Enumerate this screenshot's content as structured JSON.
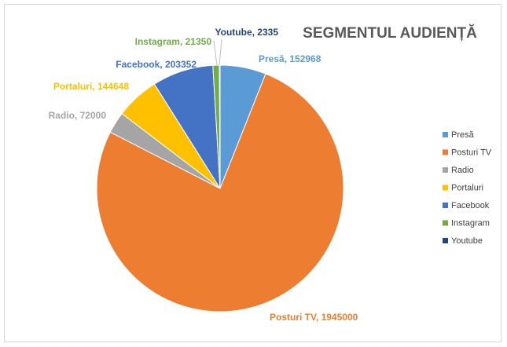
{
  "chart_data": {
    "type": "pie",
    "title": "SEGMENTUL AUDIENȚĂ",
    "categories": [
      "Presă",
      "Posturi TV",
      "Radio",
      "Portaluri",
      "Facebook",
      "Instagram",
      "Youtube"
    ],
    "values": [
      152968,
      1945000,
      72000,
      144648,
      203352,
      21350,
      2335
    ],
    "data_labels": [
      "Presă, 152968",
      "Posturi TV, 1945000",
      "Radio, 72000",
      "Portaluri, 144648",
      "Facebook, 203352",
      "Instagram, 21350",
      "Youtube, 2335"
    ],
    "colors": [
      "#5b9bd5",
      "#ed7d31",
      "#a5a5a5",
      "#ffc000",
      "#4472c4",
      "#70ad47",
      "#264478"
    ],
    "legend_position": "right"
  }
}
